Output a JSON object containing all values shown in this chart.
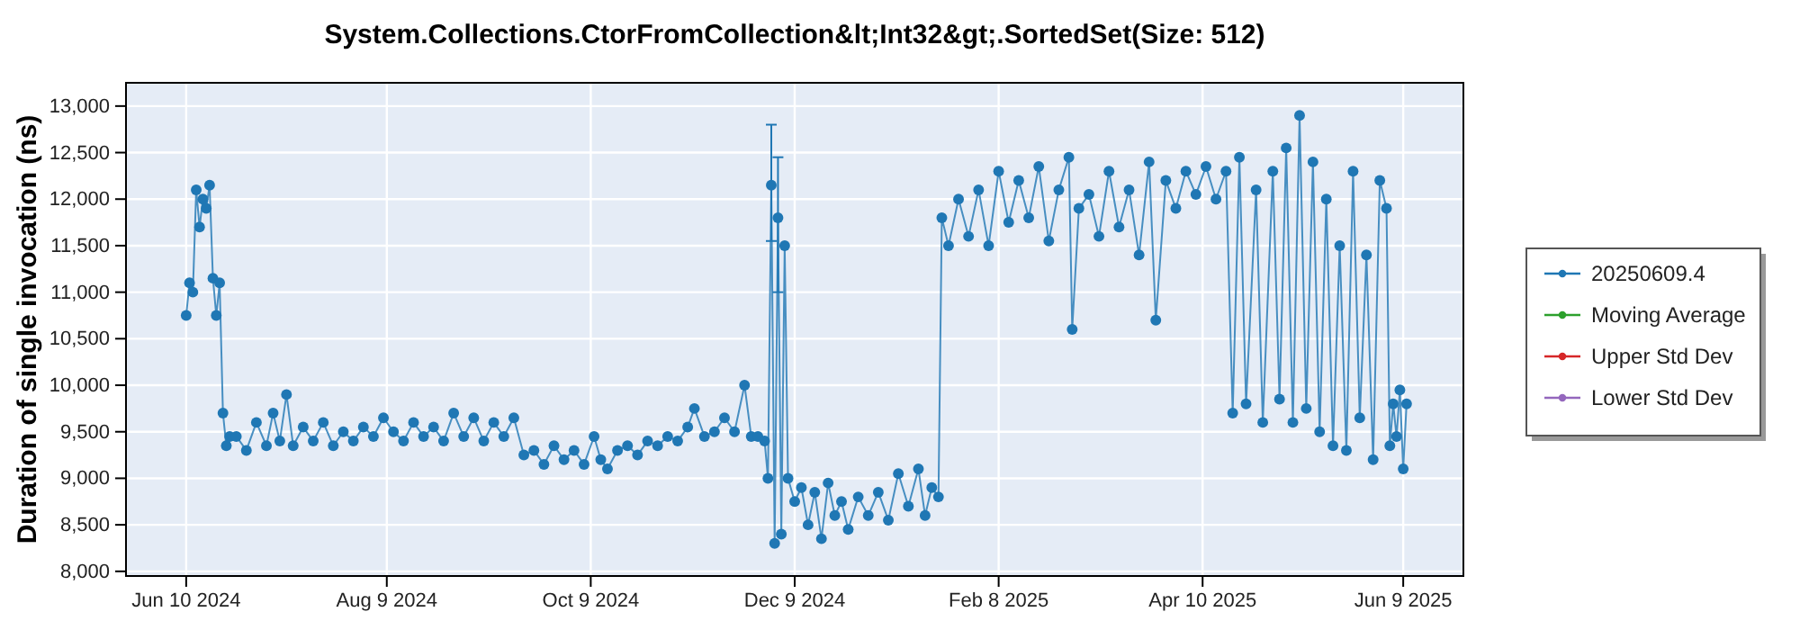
{
  "chart_data": {
    "type": "line",
    "title": "System.Collections.CtorFromCollection&lt;Int32&gt;.SortedSet(Size: 512)",
    "ylabel": "Duration of single invocation (ns)",
    "xlim": [
      "2024-05-23",
      "2025-06-27"
    ],
    "xticks": [
      {
        "value": "2024-06-10",
        "label": "Jun 10 2024"
      },
      {
        "value": "2024-08-09",
        "label": "Aug 9 2024"
      },
      {
        "value": "2024-10-09",
        "label": "Oct 9 2024"
      },
      {
        "value": "2024-12-09",
        "label": "Dec 9 2024"
      },
      {
        "value": "2025-02-08",
        "label": "Feb 8 2025"
      },
      {
        "value": "2025-04-10",
        "label": "Apr 10 2025"
      },
      {
        "value": "2025-06-09",
        "label": "Jun 9 2025"
      }
    ],
    "ylim": [
      7950,
      13250
    ],
    "yticks": [
      {
        "value": 8000,
        "label": "8,000"
      },
      {
        "value": 8500,
        "label": "8,500"
      },
      {
        "value": 9000,
        "label": "9,000"
      },
      {
        "value": 9500,
        "label": "9,500"
      },
      {
        "value": 10000,
        "label": "10,000"
      },
      {
        "value": 10500,
        "label": "10,500"
      },
      {
        "value": 11000,
        "label": "11,000"
      },
      {
        "value": 11500,
        "label": "11,500"
      },
      {
        "value": 12000,
        "label": "12,000"
      },
      {
        "value": 12500,
        "label": "12,500"
      },
      {
        "value": 13000,
        "label": "13,000"
      }
    ],
    "grid": true,
    "legend": "right",
    "marker": "circle",
    "line_style": "solid",
    "series": [
      {
        "name": "20250609.4",
        "color": "#1f77b4",
        "x": [
          "2024-06-10",
          "2024-06-11",
          "2024-06-12",
          "2024-06-13",
          "2024-06-14",
          "2024-06-15",
          "2024-06-16",
          "2024-06-17",
          "2024-06-18",
          "2024-06-19",
          "2024-06-20",
          "2024-06-21",
          "2024-06-22",
          "2024-06-23",
          "2024-06-25",
          "2024-06-28",
          "2024-07-01",
          "2024-07-04",
          "2024-07-06",
          "2024-07-08",
          "2024-07-10",
          "2024-07-12",
          "2024-07-15",
          "2024-07-18",
          "2024-07-21",
          "2024-07-24",
          "2024-07-27",
          "2024-07-30",
          "2024-08-02",
          "2024-08-05",
          "2024-08-08",
          "2024-08-11",
          "2024-08-14",
          "2024-08-17",
          "2024-08-20",
          "2024-08-23",
          "2024-08-26",
          "2024-08-29",
          "2024-09-01",
          "2024-09-04",
          "2024-09-07",
          "2024-09-10",
          "2024-09-13",
          "2024-09-16",
          "2024-09-19",
          "2024-09-22",
          "2024-09-25",
          "2024-09-28",
          "2024-10-01",
          "2024-10-04",
          "2024-10-07",
          "2024-10-10",
          "2024-10-12",
          "2024-10-14",
          "2024-10-17",
          "2024-10-20",
          "2024-10-23",
          "2024-10-26",
          "2024-10-29",
          "2024-11-01",
          "2024-11-04",
          "2024-11-07",
          "2024-11-09",
          "2024-11-12",
          "2024-11-15",
          "2024-11-18",
          "2024-11-21",
          "2024-11-24",
          "2024-11-26",
          "2024-11-28",
          "2024-11-30",
          "2024-12-01",
          "2024-12-02",
          "2024-12-03",
          "2024-12-04",
          "2024-12-05",
          "2024-12-06",
          "2024-12-07",
          "2024-12-09",
          "2024-12-11",
          "2024-12-13",
          "2024-12-15",
          "2024-12-17",
          "2024-12-19",
          "2024-12-21",
          "2024-12-23",
          "2024-12-25",
          "2024-12-28",
          "2024-12-31",
          "2025-01-03",
          "2025-01-06",
          "2025-01-09",
          "2025-01-12",
          "2025-01-15",
          "2025-01-17",
          "2025-01-19",
          "2025-01-21",
          "2025-01-22",
          "2025-01-24",
          "2025-01-27",
          "2025-01-30",
          "2025-02-02",
          "2025-02-05",
          "2025-02-08",
          "2025-02-11",
          "2025-02-14",
          "2025-02-17",
          "2025-02-20",
          "2025-02-23",
          "2025-02-26",
          "2025-03-01",
          "2025-03-02",
          "2025-03-04",
          "2025-03-07",
          "2025-03-10",
          "2025-03-13",
          "2025-03-16",
          "2025-03-19",
          "2025-03-22",
          "2025-03-25",
          "2025-03-27",
          "2025-03-30",
          "2025-04-02",
          "2025-04-05",
          "2025-04-08",
          "2025-04-11",
          "2025-04-14",
          "2025-04-17",
          "2025-04-19",
          "2025-04-21",
          "2025-04-23",
          "2025-04-26",
          "2025-04-28",
          "2025-05-01",
          "2025-05-03",
          "2025-05-05",
          "2025-05-07",
          "2025-05-09",
          "2025-05-11",
          "2025-05-13",
          "2025-05-15",
          "2025-05-17",
          "2025-05-19",
          "2025-05-21",
          "2025-05-23",
          "2025-05-25",
          "2025-05-27",
          "2025-05-29",
          "2025-05-31",
          "2025-06-02",
          "2025-06-04",
          "2025-06-05",
          "2025-06-06",
          "2025-06-07",
          "2025-06-08",
          "2025-06-09",
          "2025-06-10"
        ],
        "values": [
          10750,
          11100,
          11000,
          12100,
          11700,
          12000,
          11900,
          12150,
          11150,
          10750,
          11100,
          9700,
          9350,
          9450,
          9450,
          9300,
          9600,
          9350,
          9700,
          9400,
          9900,
          9350,
          9550,
          9400,
          9600,
          9350,
          9500,
          9400,
          9550,
          9450,
          9650,
          9500,
          9400,
          9600,
          9450,
          9550,
          9400,
          9700,
          9450,
          9650,
          9400,
          9600,
          9450,
          9650,
          9250,
          9300,
          9150,
          9350,
          9200,
          9300,
          9150,
          9450,
          9200,
          9100,
          9300,
          9350,
          9250,
          9400,
          9350,
          9450,
          9400,
          9550,
          9750,
          9450,
          9500,
          9650,
          9500,
          10000,
          9450,
          9450,
          9400,
          9000,
          12150,
          8300,
          11800,
          8400,
          11500,
          9000,
          8750,
          8900,
          8500,
          8850,
          8350,
          8950,
          8600,
          8750,
          8450,
          8800,
          8600,
          8850,
          8550,
          9050,
          8700,
          9100,
          8600,
          8900,
          8800,
          11800,
          11500,
          12000,
          11600,
          12100,
          11500,
          12300,
          11750,
          12200,
          11800,
          12350,
          11550,
          12100,
          12450,
          10600,
          11900,
          12050,
          11600,
          12300,
          11700,
          12100,
          11400,
          12400,
          10700,
          12200,
          11900,
          12300,
          12050,
          12350,
          12000,
          12300,
          9700,
          12450,
          9800,
          12100,
          9600,
          12300,
          9850,
          12550,
          9600,
          12900,
          9750,
          12400,
          9500,
          12000,
          9350,
          11500,
          9300,
          12300,
          9650,
          11400,
          9200,
          12200,
          11900,
          9350,
          9800,
          9450,
          9950,
          9100,
          9800
        ],
        "errors": [
          null,
          null,
          null,
          null,
          null,
          null,
          null,
          null,
          null,
          null,
          null,
          null,
          null,
          null,
          null,
          null,
          null,
          null,
          null,
          null,
          null,
          null,
          null,
          null,
          null,
          null,
          null,
          null,
          null,
          null,
          null,
          null,
          null,
          null,
          null,
          null,
          null,
          null,
          null,
          null,
          null,
          null,
          null,
          null,
          null,
          null,
          null,
          null,
          null,
          null,
          null,
          null,
          null,
          null,
          null,
          null,
          null,
          null,
          null,
          null,
          null,
          null,
          null,
          null,
          null,
          null,
          null,
          null,
          null,
          null,
          null,
          null,
          [
            11550,
            12800
          ],
          null,
          [
            11000,
            12450
          ],
          null,
          null,
          null,
          null,
          null,
          null,
          null,
          null,
          null,
          null,
          null,
          null,
          null,
          null,
          null,
          null,
          null,
          null,
          null,
          null,
          null,
          null,
          null,
          null,
          null,
          null,
          null,
          null,
          null,
          null,
          null,
          null,
          null,
          null,
          null,
          null,
          null,
          null,
          null,
          null,
          null,
          null,
          null,
          null,
          null,
          null,
          null,
          null,
          null,
          null,
          null,
          null,
          null,
          null,
          null,
          null,
          null,
          null,
          null,
          null,
          null,
          null,
          null,
          null,
          null,
          null,
          null,
          null,
          null,
          null,
          null,
          null,
          null,
          null,
          null,
          null,
          null,
          null,
          null,
          null,
          null,
          null
        ]
      },
      {
        "name": "Moving Average",
        "color": "#2ca02c"
      },
      {
        "name": "Upper Std Dev",
        "color": "#d62728"
      },
      {
        "name": "Lower Std Dev",
        "color": "#9467bd"
      }
    ]
  }
}
